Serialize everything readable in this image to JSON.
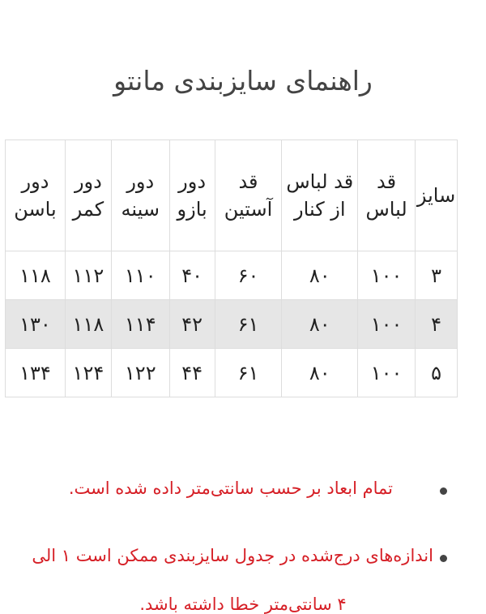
{
  "title": "راهنمای سایزبندی مانتو",
  "table": {
    "headers": [
      "سایز",
      "قد لباس",
      "قد لباس از کنار",
      "قد آستین",
      "دور بازو",
      "دور سینه",
      "دور کمر",
      "دور باسن"
    ],
    "rows": [
      [
        "۳",
        "۱۰۰",
        "۸۰",
        "۶۰",
        "۴۰",
        "۱۱۰",
        "۱۱۲",
        "۱۱۸"
      ],
      [
        "۴",
        "۱۰۰",
        "۸۰",
        "۶۱",
        "۴۲",
        "۱۱۴",
        "۱۱۸",
        "۱۳۰"
      ],
      [
        "۵",
        "۱۰۰",
        "۸۰",
        "۶۱",
        "۴۴",
        "۱۲۲",
        "۱۲۴",
        "۱۳۴"
      ]
    ]
  },
  "notes": [
    "تمام ابعاد بر حسب سانتی‌متر داده شده است.",
    "اندازه‌های درج‌شده در جدول سایزبندی ممکن است ۱ الی",
    "۴ سانتی‌متر خطا داشته باشد."
  ],
  "colors": {
    "note_text": "#d61f26",
    "alt_row": "#e6e6e6"
  }
}
